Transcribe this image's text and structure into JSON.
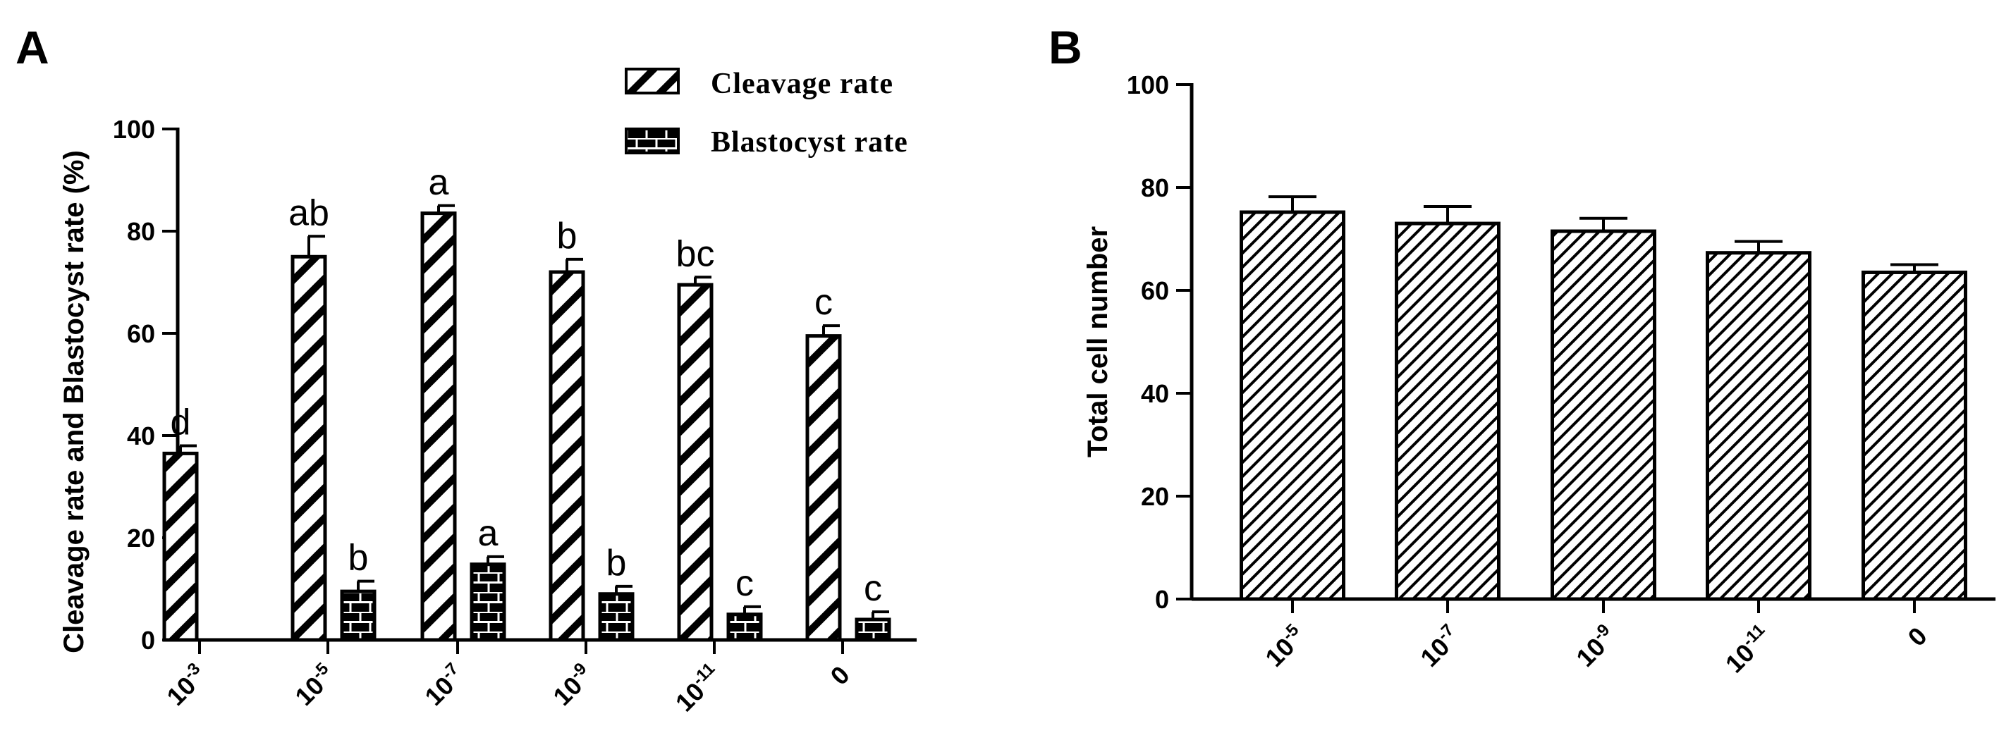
{
  "chart_data": [
    {
      "panel": "A",
      "type": "bar",
      "ylabel": "Cleavage rate and Blastocyst rate (%)",
      "xlabel": "",
      "ylim": [
        0,
        100
      ],
      "yticks": [
        0,
        20,
        40,
        60,
        80,
        100
      ],
      "categories": [
        {
          "base": "10",
          "exp": "-3"
        },
        {
          "base": "10",
          "exp": "-5"
        },
        {
          "base": "10",
          "exp": "-7"
        },
        {
          "base": "10",
          "exp": "-9"
        },
        {
          "base": "10",
          "exp": "-11"
        },
        {
          "base": "0",
          "exp": ""
        }
      ],
      "legend_position": "top-right",
      "series": [
        {
          "name": "Cleavage rate",
          "pattern": "diagonal-hatch",
          "values": [
            36.5,
            75,
            83.5,
            72,
            69.5,
            59.5
          ],
          "errors": [
            1.5,
            4,
            1.5,
            2.5,
            1.5,
            2
          ],
          "labels": [
            "d",
            "ab",
            "a",
            "b",
            "bc",
            "c"
          ]
        },
        {
          "name": "Blastocyst rate",
          "pattern": "brick",
          "values": [
            0,
            9.5,
            14.8,
            9,
            5,
            4
          ],
          "errors": [
            0,
            2,
            1.5,
            1.5,
            1.5,
            1.5
          ],
          "labels": [
            "",
            "b",
            "a",
            "b",
            "c",
            "c"
          ]
        }
      ]
    },
    {
      "panel": "B",
      "type": "bar",
      "ylabel": "Total cell number",
      "xlabel": "",
      "ylim": [
        0,
        100
      ],
      "yticks": [
        0,
        20,
        40,
        60,
        80,
        100
      ],
      "categories": [
        {
          "base": "10",
          "exp": "-5"
        },
        {
          "base": "10",
          "exp": "-7"
        },
        {
          "base": "10",
          "exp": "-9"
        },
        {
          "base": "10",
          "exp": "-11"
        },
        {
          "base": "0",
          "exp": ""
        }
      ],
      "series": [
        {
          "name": "Total cell number",
          "pattern": "fine-diagonal-hatch",
          "values": [
            75.2,
            73,
            71.5,
            67.3,
            63.5
          ],
          "errors": [
            3,
            3.3,
            2.5,
            2.2,
            1.5
          ]
        }
      ]
    }
  ],
  "colors": {
    "ink": "#000000",
    "fill": "#ffffff"
  }
}
